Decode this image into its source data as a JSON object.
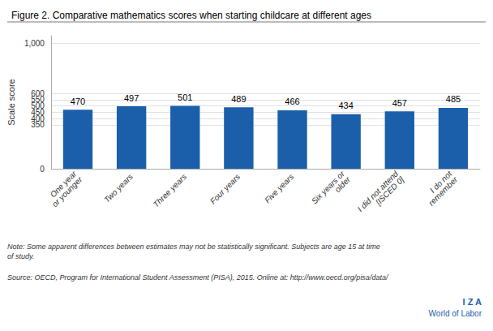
{
  "chart_data": {
    "type": "bar",
    "title": "Figure 2. Comparative mathematics scores when starting childcare at different ages",
    "categories": [
      "One year\nor younger",
      "Two years",
      "Three years",
      "Four years",
      "Five years",
      "Six years or\nolder",
      "I did not attend\n[ISCED 0]",
      "I do not\nremember"
    ],
    "values": [
      470,
      497,
      501,
      489,
      466,
      434,
      457,
      485
    ],
    "color": "#1B5FAA",
    "ylabel": "Scale score",
    "ylim": [
      0,
      1060
    ],
    "yticks": [
      0,
      350,
      400,
      450,
      500,
      550,
      600,
      {
        "value": 1000,
        "label": "1,000"
      }
    ],
    "grid": true,
    "data_labels": true,
    "annotations": [
      "Note: Some apparent differences between estimates may not be statistically significant. Subjects are age 15 at time\nof study.",
      "Source: OECD, Program for International Student Assessment (PISA), 2015. Online at: http://www.oecd.org/pisa/data/",
      "I Z A",
      "World of Labor"
    ]
  }
}
